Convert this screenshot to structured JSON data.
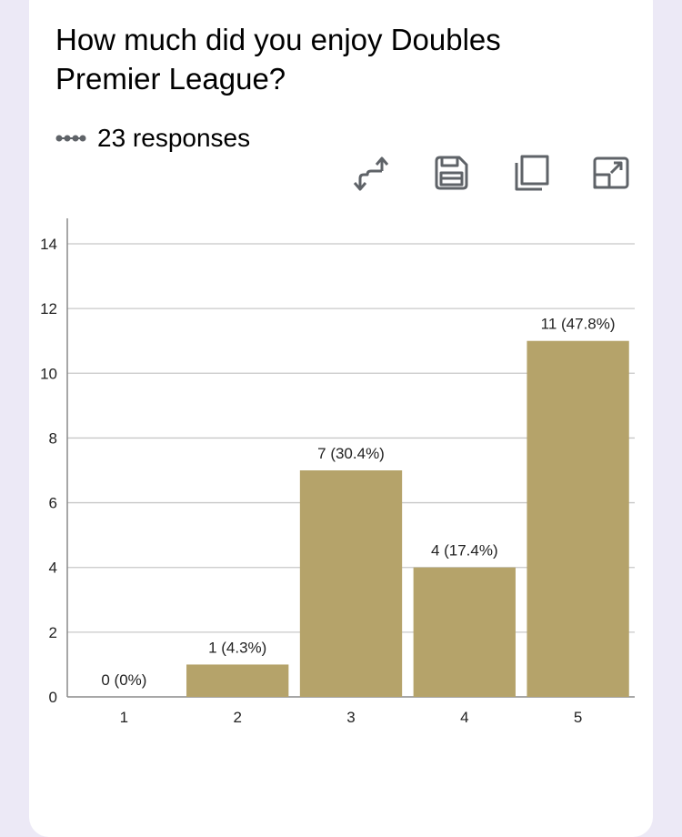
{
  "question": {
    "title": "How much did you enjoy Doubles Premier League?",
    "responses": "23 responses"
  },
  "toolbar": {
    "icons": [
      "switch-axes-icon",
      "save-icon",
      "copy-icon",
      "expand-icon"
    ]
  },
  "colors": {
    "bar": "#b5a36a",
    "background": "#ece9f6",
    "card": "#ffffff",
    "grid": "#c8c8c8",
    "axis": "#8a8a8a",
    "icon": "#5f6368"
  },
  "chart_data": {
    "type": "bar",
    "title": "",
    "xlabel": "",
    "ylabel": "",
    "categories": [
      "1",
      "2",
      "3",
      "4",
      "5"
    ],
    "values": [
      0,
      1,
      7,
      4,
      11
    ],
    "data_labels": [
      "0 (0%)",
      "1 (4.3%)",
      "7 (30.4%)",
      "4 (17.4%)",
      "11 (47.8%)"
    ],
    "ylim": [
      0,
      14
    ],
    "yticks": [
      0,
      2,
      4,
      6,
      8,
      10,
      12,
      14
    ],
    "grid": true,
    "legend": "none"
  }
}
